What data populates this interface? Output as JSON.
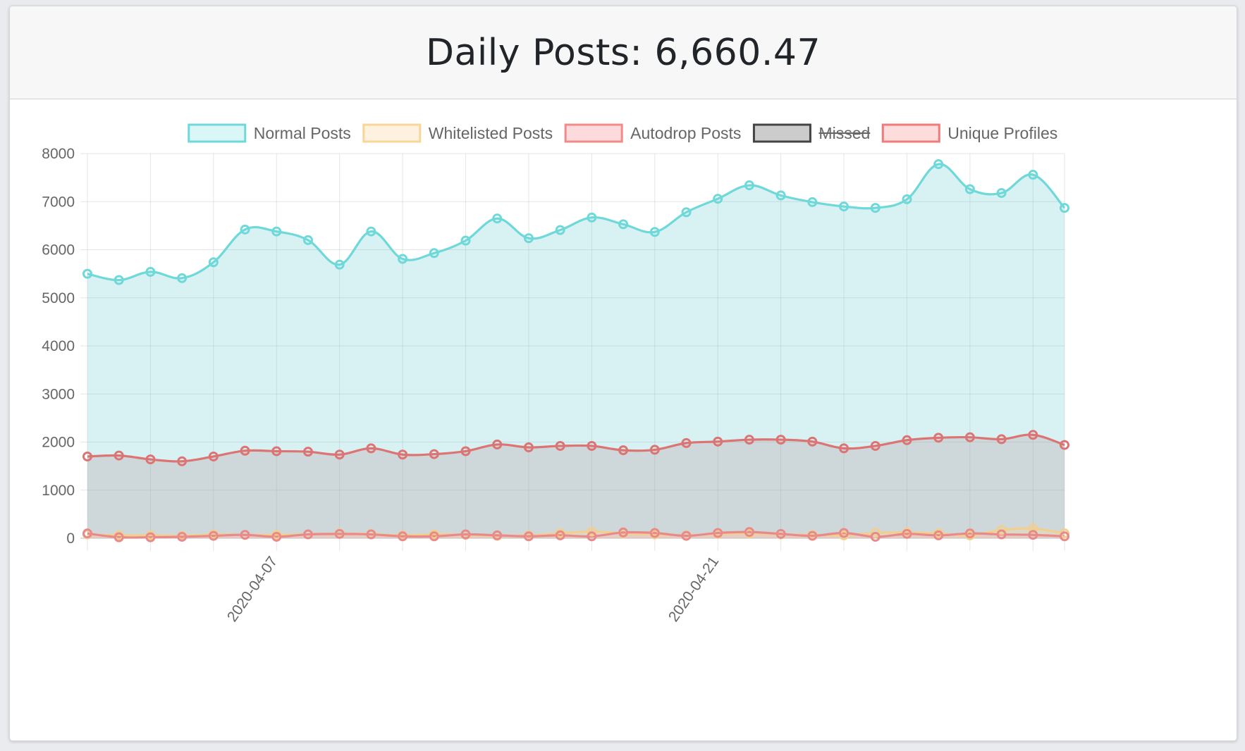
{
  "header": {
    "title": "Daily Posts: 6,660.47"
  },
  "chart_data": {
    "type": "area",
    "ylim": [
      0,
      8000
    ],
    "yticks": [
      "8000",
      "7000",
      "6000",
      "5000",
      "4000",
      "3000",
      "2000",
      "1000",
      "0"
    ],
    "x": [
      "2020-04-01",
      "2020-04-02",
      "2020-04-03",
      "2020-04-04",
      "2020-04-05",
      "2020-04-06",
      "2020-04-07",
      "2020-04-08",
      "2020-04-09",
      "2020-04-10",
      "2020-04-11",
      "2020-04-12",
      "2020-04-13",
      "2020-04-14",
      "2020-04-15",
      "2020-04-16",
      "2020-04-17",
      "2020-04-18",
      "2020-04-19",
      "2020-04-20",
      "2020-04-21",
      "2020-04-22",
      "2020-04-23",
      "2020-04-24",
      "2020-04-25",
      "2020-04-26",
      "2020-04-27",
      "2020-04-28",
      "2020-04-29",
      "2020-04-30",
      "2020-05-01",
      "2020-05-02"
    ],
    "xtick_labels": [
      {
        "index": 6,
        "label": "2020-04-07"
      },
      {
        "index": 20,
        "label": "2020-04-21"
      }
    ],
    "grid": true,
    "legend": {
      "position": "top",
      "items": [
        {
          "label": "Normal Posts",
          "stroke": "#6fd8d8",
          "fill": "#daf6f6",
          "hidden": false
        },
        {
          "label": "Whitelisted Posts",
          "stroke": "#f8d698",
          "fill": "#fef1e0",
          "hidden": false
        },
        {
          "label": "Autodrop Posts",
          "stroke": "#f38a8a",
          "fill": "#fddbdd",
          "hidden": false
        },
        {
          "label": "Missed",
          "stroke": "#444444",
          "fill": "#cccccc",
          "hidden": true
        },
        {
          "label": "Unique Profiles",
          "stroke": "#f27a7a",
          "fill": "#fddcdc",
          "hidden": false
        }
      ]
    },
    "series": [
      {
        "name": "Normal Posts",
        "stroke": "#6fd8d8",
        "fill": "rgba(100,205,210,0.25)",
        "values": [
          5500,
          5370,
          5540,
          5410,
          5740,
          6420,
          6380,
          6200,
          5690,
          6380,
          5810,
          5930,
          6190,
          6650,
          6240,
          6410,
          6670,
          6530,
          6370,
          6780,
          7060,
          7340,
          7130,
          6990,
          6900,
          6870,
          7050,
          7780,
          7260,
          7180,
          7560,
          6870
        ]
      },
      {
        "name": "Unique Profiles",
        "stroke": "#dc7474",
        "fill": "rgba(180,150,150,0.28)",
        "values": [
          1700,
          1720,
          1640,
          1600,
          1700,
          1820,
          1810,
          1800,
          1740,
          1870,
          1740,
          1750,
          1810,
          1950,
          1890,
          1920,
          1920,
          1830,
          1840,
          1980,
          2010,
          2050,
          2050,
          2010,
          1870,
          1920,
          2040,
          2090,
          2100,
          2060,
          2150,
          1940
        ]
      },
      {
        "name": "Whitelisted Posts",
        "stroke": "#f1cf8e",
        "fill": "rgba(250,220,170,0.35)",
        "values": [
          80,
          60,
          60,
          50,
          80,
          70,
          70,
          80,
          100,
          90,
          60,
          80,
          70,
          50,
          60,
          100,
          140,
          100,
          80,
          60,
          90,
          100,
          80,
          70,
          60,
          110,
          120,
          100,
          60,
          170,
          200,
          100
        ]
      },
      {
        "name": "Autodrop Posts",
        "stroke": "#e98a8a",
        "fill": "rgba(245,180,185,0.35)",
        "values": [
          100,
          20,
          20,
          30,
          50,
          70,
          30,
          80,
          90,
          80,
          40,
          40,
          80,
          60,
          40,
          60,
          40,
          120,
          110,
          50,
          110,
          130,
          90,
          50,
          110,
          30,
          90,
          60,
          100,
          80,
          70,
          40
        ]
      }
    ]
  }
}
